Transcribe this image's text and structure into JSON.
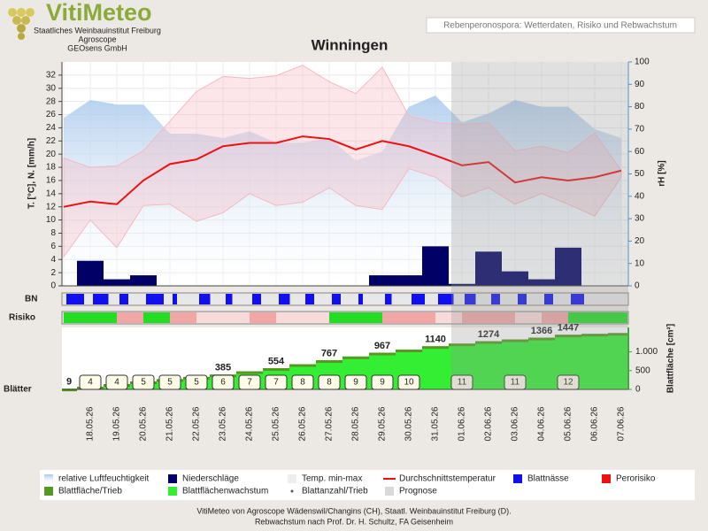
{
  "header": {
    "brand": "VitiMeteo",
    "org1": "Staatliches Weinbauinstitut Freiburg",
    "org2": "Agroscope",
    "org3": "GEOsens GmbH",
    "subtitle": "Rebenperonospora: Wetterdaten, Risiko und Rebwachstum"
  },
  "chart_data": {
    "type": "combo",
    "title": "Winningen",
    "categories": [
      null,
      "18.05.26",
      "19.05.26",
      "20.05.26",
      "21.05.26",
      "22.05.26",
      "23.05.26",
      "24.05.26",
      "25.05.26",
      "26.05.26",
      "27.05.26",
      "28.05.26",
      "29.05.26",
      "30.05.26",
      "31.05.26",
      "01.06.26",
      "02.06.26",
      "03.06.26",
      "04.06.26",
      "05.06.26",
      "06.06.26",
      "07.06.26"
    ],
    "y_label": "T. [°C], N. [mm/h]",
    "ylim": [
      0,
      34
    ],
    "yticks": [
      0,
      2,
      4,
      6,
      8,
      10,
      12,
      14,
      16,
      18,
      20,
      22,
      24,
      26,
      28,
      30,
      32
    ],
    "y2_label": "rH [%]",
    "y2lim": [
      0,
      100
    ],
    "y2ticks": [
      0,
      10,
      20,
      30,
      40,
      50,
      60,
      70,
      80,
      90,
      100
    ],
    "grid": true,
    "series": [
      {
        "type": "area",
        "axis": "y2",
        "color": "#a8c8ec",
        "values": [
          75,
          83,
          81,
          81,
          68,
          68,
          66,
          69,
          64,
          64,
          66,
          56,
          60,
          80,
          85,
          73,
          77,
          83,
          80,
          80,
          70,
          66
        ]
      },
      {
        "type": "range",
        "color": "#f7b8c0",
        "low": [
          4.4,
          10,
          5.8,
          12.2,
          12.4,
          9.8,
          11.1,
          14,
          12.2,
          12.7,
          14.9,
          12.2,
          11.6,
          17.8,
          16.5,
          13.5,
          14.9,
          12.4,
          14,
          12.4,
          10.6,
          16.5
        ],
        "high": [
          19.4,
          18,
          18.2,
          20.5,
          25,
          29.5,
          31.8,
          31.5,
          31.9,
          33.5,
          31,
          29.2,
          33.2,
          25.8,
          24.8,
          24.5,
          24.8,
          20.5,
          21.2,
          20.2,
          23.2,
          17.5
        ]
      },
      {
        "type": "bar",
        "color": "#000066",
        "values": [
          0,
          3.8,
          1,
          1.6,
          0,
          0,
          0,
          0,
          0,
          0,
          0,
          0,
          1.6,
          1.6,
          6,
          0.3,
          5.2,
          2.2,
          1,
          5.8,
          0,
          0
        ]
      },
      {
        "type": "line",
        "color": "#ee1111",
        "values": [
          12,
          12.8,
          12.4,
          16,
          18.5,
          19.2,
          21.2,
          21.7,
          21.7,
          22.7,
          22.3,
          20.7,
          22,
          21.2,
          19.8,
          18.3,
          18.8,
          15.7,
          16.5,
          16,
          16.5,
          17.5
        ]
      }
    ],
    "bn": {
      "label": "BN",
      "color": "#1010ee",
      "values": [
        16,
        14,
        8,
        16,
        4,
        10,
        6,
        8,
        10,
        8,
        8,
        4,
        6,
        12,
        14,
        10,
        8,
        8,
        8,
        12,
        0,
        0
      ]
    },
    "risk": {
      "label": "Risiko",
      "colors": [
        "#22dd22",
        "#f9dada",
        "#f2a6a6"
      ],
      "levels": [
        0,
        0,
        2,
        0,
        2,
        1,
        1,
        2,
        1,
        1,
        0,
        0,
        2,
        2,
        1,
        2,
        2,
        1,
        2,
        0,
        0,
        0
      ]
    },
    "leaves": {
      "label": "Blätter",
      "counts": [
        null,
        4,
        4,
        5,
        5,
        5,
        6,
        7,
        7,
        8,
        8,
        9,
        9,
        10,
        null,
        11,
        null,
        11,
        null,
        12,
        null,
        null
      ]
    },
    "leaf_area": {
      "label": "Blattfläche [cm²]",
      "color": "#33ee33",
      "edge": "#559922",
      "ylim": [
        0,
        1650
      ],
      "yticks": [
        0,
        500,
        {
          "value": 1000,
          "label": "1.000"
        }
      ],
      "values": [
        9,
        60,
        130,
        200,
        263,
        320,
        385,
        470,
        554,
        660,
        767,
        867,
        967,
        1050,
        1140,
        1210,
        1274,
        1320,
        1366,
        1447,
        1470,
        1490
      ],
      "value_labels": [
        "9",
        null,
        null,
        null,
        null,
        null,
        "385",
        null,
        "554",
        null,
        "767",
        null,
        "967",
        null,
        "1140",
        null,
        "1274",
        null,
        "1366",
        "1447",
        null,
        null
      ]
    },
    "legend": [
      {
        "name": "relative Luftfeuchtigkeit",
        "color": "#a8c8ec",
        "kind": "gradient"
      },
      {
        "name": "Niederschläge",
        "color": "#000066",
        "kind": "box"
      },
      {
        "name": "Temp. min-max",
        "color": "#eeeeee",
        "kind": "box"
      },
      {
        "name": "Durchschnittstemperatur",
        "color": "#ee1111",
        "kind": "line"
      },
      {
        "name": "Blattnässe",
        "color": "#1010ee",
        "kind": "box"
      },
      {
        "name": "Perorisiko",
        "color": "#ee1111",
        "kind": "box"
      },
      {
        "name": "Blattfläche/Trieb",
        "color": "#559922",
        "kind": "box"
      },
      {
        "name": "Blattflächenwachstum",
        "color": "#33ee33",
        "kind": "box"
      },
      {
        "name": "Blattanzahl/Trieb",
        "color": "#555555",
        "kind": "dot"
      },
      {
        "name": "Prognose",
        "color": "#d8d8d8",
        "kind": "box"
      }
    ]
  },
  "footer": {
    "line1": "VitiMeteo von Agroscope Wädenswil/Changins (CH), Staatl. Weinbauinstitut Freiburg (D).",
    "line2": "Rebwachstum nach Prof. Dr. H. Schultz, FA Geisenheim"
  }
}
